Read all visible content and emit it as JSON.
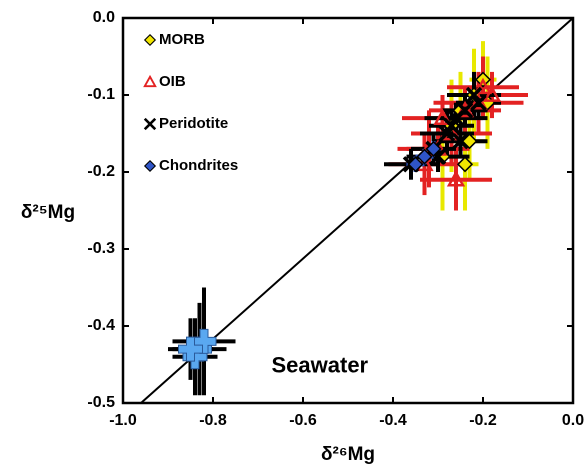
{
  "chart_data": {
    "type": "scatter",
    "x_label": "δ²⁶Mg",
    "y_label": "δ²⁵Mg",
    "xlim": [
      -1.0,
      0.0
    ],
    "xticks": [
      {
        "value": -1.0,
        "label": "-1.0"
      },
      -0.8,
      -0.6,
      -0.4,
      -0.2,
      {
        "value": 0.0,
        "label": "0.0"
      }
    ],
    "ylim": [
      -0.5,
      0.0
    ],
    "yticks": [
      {
        "value": 0.0,
        "label": "0.0"
      },
      -0.1,
      -0.2,
      -0.3,
      -0.4,
      -0.5
    ],
    "grid": false,
    "legend": "upper left",
    "reference_line": {
      "x": [
        -0.96,
        0.0
      ],
      "y": [
        -0.5,
        0.0
      ]
    },
    "series": [
      {
        "name": "MORB",
        "marker": "diamond",
        "color": "#f2e600",
        "error_color": "#e8e800",
        "legend": true,
        "x": [
          -0.2,
          -0.22,
          -0.25,
          -0.27,
          -0.29,
          -0.23,
          -0.19,
          -0.24
        ],
        "y": [
          -0.08,
          -0.1,
          -0.12,
          -0.14,
          -0.18,
          -0.16,
          -0.11,
          -0.19
        ],
        "xerr": [
          0.03,
          0.03,
          0.04,
          0.03,
          0.03,
          0.04,
          0.03,
          0.03
        ],
        "yerr": [
          0.05,
          0.06,
          0.05,
          0.06,
          0.07,
          0.05,
          0.06,
          0.06
        ]
      },
      {
        "name": "OIB",
        "marker": "triangle",
        "color": "#e32222",
        "error_color": "#e32222",
        "legend": true,
        "x": [
          -0.33,
          -0.3,
          -0.27,
          -0.24,
          -0.21,
          -0.18,
          -0.32,
          -0.26,
          -0.29,
          -0.2
        ],
        "y": [
          -0.19,
          -0.17,
          -0.15,
          -0.12,
          -0.11,
          -0.1,
          -0.17,
          -0.21,
          -0.13,
          -0.09
        ],
        "xerr": [
          0.08,
          0.07,
          0.09,
          0.08,
          0.1,
          0.08,
          0.07,
          0.08,
          0.09,
          0.08
        ],
        "yerr": [
          0.04,
          0.03,
          0.04,
          0.03,
          0.04,
          0.03,
          0.05,
          0.04,
          0.03,
          0.04
        ]
      },
      {
        "name": "Peridotite",
        "marker": "x",
        "color": "#000000",
        "error_color": "#000000",
        "legend": true,
        "x": [
          -0.36,
          -0.31,
          -0.28,
          -0.26,
          -0.24,
          -0.22,
          -0.27,
          -0.25,
          -0.3,
          -0.21
        ],
        "y": [
          -0.19,
          -0.17,
          -0.15,
          -0.13,
          -0.12,
          -0.1,
          -0.14,
          -0.16,
          -0.18,
          -0.11
        ],
        "xerr": [
          0.06,
          0.05,
          0.06,
          0.07,
          0.05,
          0.06,
          0.05,
          0.06,
          0.07,
          0.05
        ],
        "yerr": [
          0.02,
          0.02,
          0.03,
          0.02,
          0.02,
          0.03,
          0.02,
          0.02,
          0.02,
          0.02
        ]
      },
      {
        "name": "Chondrites",
        "marker": "diamond",
        "color": "#2f55c8",
        "error_color": "#2f55c8",
        "legend": true,
        "x": [
          -0.33,
          -0.31,
          -0.35
        ],
        "y": [
          -0.18,
          -0.17,
          -0.19
        ],
        "xerr": [
          0.02,
          0.02,
          0.02
        ],
        "yerr": [
          0.01,
          0.01,
          0.01
        ]
      },
      {
        "name": "Seawater",
        "marker": "plus",
        "color": "#5aa8f0",
        "error_color": "#000000",
        "legend": false,
        "label_x": -0.67,
        "label_y": -0.453,
        "x": [
          -0.83,
          -0.84,
          -0.82,
          -0.85
        ],
        "y": [
          -0.43,
          -0.44,
          -0.42,
          -0.43
        ],
        "xerr": [
          0.06,
          0.05,
          0.07,
          0.05
        ],
        "yerr": [
          0.06,
          0.05,
          0.07,
          0.04
        ]
      }
    ]
  }
}
